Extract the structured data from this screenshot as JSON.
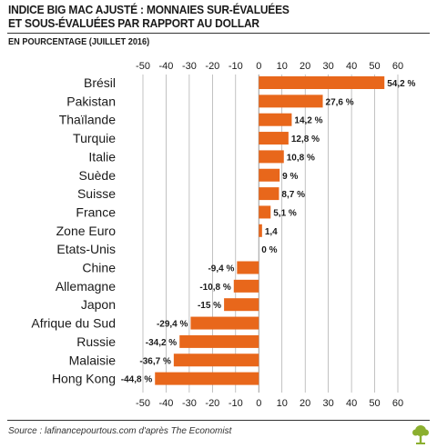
{
  "header": {
    "title_line1": "INDICE BIG MAC AJUSTÉ : MONNAIES SUR-ÉVALUÉES",
    "title_line2": "ET SOUS-ÉVALUÉES PAR RAPPORT AU DOLLAR",
    "subtitle": "EN POURCENTAGE (JUILLET 2016)"
  },
  "footer": {
    "source": "Source : lafinancepourtous.com d'après The Economist",
    "logo_icon": "tree-logo-icon"
  },
  "colors": {
    "bar": "#E8671B",
    "grid": "#9a9a9a",
    "text": "#1a1a1a",
    "logo": "#8BAF2F"
  },
  "chart_data": {
    "type": "bar",
    "orientation": "horizontal",
    "title": "INDICE BIG MAC AJUSTÉ : MONNAIES SUR-ÉVALUÉES ET SOUS-ÉVALUÉES PAR RAPPORT AU DOLLAR",
    "subtitle": "EN POURCENTAGE (JUILLET 2016)",
    "xlim": [
      -50,
      60
    ],
    "xticks": [
      -50,
      -40,
      -30,
      -20,
      -10,
      0,
      10,
      20,
      30,
      40,
      50,
      60
    ],
    "tick_labels": [
      "-50",
      "-40",
      "-30",
      "-20",
      "-10",
      "0",
      "10",
      "20",
      "30",
      "40",
      "50",
      "60"
    ],
    "grid": true,
    "categories": [
      "Brésil",
      "Pakistan",
      "Thaïlande",
      "Turquie",
      "Italie",
      "Suède",
      "Suisse",
      "France",
      "Zone Euro",
      "Etats-Unis",
      "Chine",
      "Allemagne",
      "Japon",
      "Afrique du Sud",
      "Russie",
      "Malaisie",
      "Hong Kong"
    ],
    "values": [
      54.2,
      27.6,
      14.2,
      12.8,
      10.8,
      9,
      8.7,
      5.1,
      1.4,
      0,
      -9.4,
      -10.8,
      -15,
      -29.4,
      -34.2,
      -36.7,
      -44.8
    ],
    "value_labels": [
      "54,2 %",
      "27,6 %",
      "14,2 %",
      "12,8 %",
      "10,8 %",
      "9 %",
      "8,7 %",
      "5,1 %",
      "1,4",
      "0 %",
      "-9,4 %",
      "-10,8 %",
      "-15 %",
      "-29,4 %",
      "-34,2 %",
      "-36,7 %",
      "-44,8 %"
    ]
  }
}
